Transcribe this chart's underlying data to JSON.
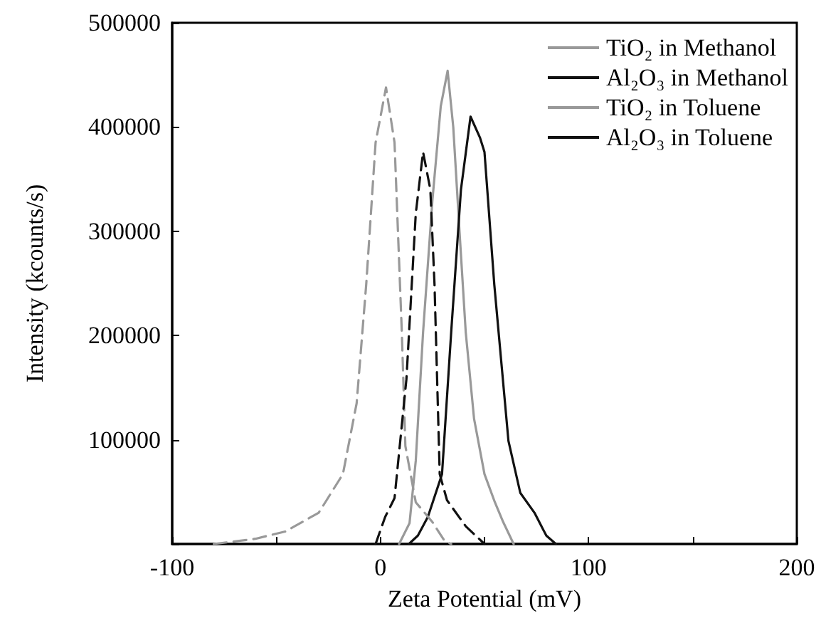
{
  "chart_data": {
    "type": "line",
    "xlabel": "Zeta Potential (mV)",
    "ylabel": "Intensity (kcounts/s)",
    "xlim": [
      -100,
      200
    ],
    "xticks": [
      -100,
      {
        "value": -50,
        "label": null
      },
      0,
      {
        "value": 50,
        "label": null
      },
      100,
      {
        "value": 150,
        "label": null
      },
      200
    ],
    "ylim": [
      0,
      500000
    ],
    "yticks": [
      {
        "value": 0,
        "label": null
      },
      100000,
      200000,
      300000,
      400000,
      500000
    ],
    "grid": false,
    "legend": "top right",
    "marker": "none",
    "series": [
      {
        "name": "TiO₂ in Methanol",
        "color": "#999999",
        "line_style": "solid",
        "x": [
          9,
          14,
          17,
          20.5,
          25,
          29,
          32.3,
          35,
          38,
          41,
          45,
          50,
          55,
          59,
          64
        ],
        "values": [
          0,
          20000,
          80000,
          203000,
          330000,
          420000,
          454000,
          400000,
          300000,
          203000,
          120000,
          67000,
          40000,
          21000,
          0
        ]
      },
      {
        "name": "Al₂O₃ in Methanol",
        "color": "#111111",
        "line_style": "solid",
        "x": [
          13.7,
          18,
          22.8,
          29.6,
          34,
          38.7,
          43.3,
          47.8,
          50,
          54.7,
          61.5,
          67.2,
          74,
          79.7,
          84.3
        ],
        "values": [
          0,
          8000,
          26000,
          67000,
          203000,
          340000,
          410000,
          390000,
          376000,
          249000,
          99000,
          49000,
          30000,
          8000,
          0
        ]
      },
      {
        "name": "TiO₂ in Toluene",
        "color": "#999999",
        "line_style": "dashed",
        "x": [
          -80,
          -60,
          -45.6,
          -29.6,
          -18,
          -11.4,
          -6.8,
          -2.3,
          2.7,
          6.8,
          10.3,
          12,
          17,
          25,
          30.8,
          34
        ],
        "values": [
          0,
          5000,
          12000,
          30000,
          67000,
          135000,
          249000,
          385000,
          438000,
          385000,
          203000,
          94000,
          40000,
          21000,
          3000,
          0
        ]
      },
      {
        "name": "Al₂O₃ in Toluene",
        "color": "#111111",
        "line_style": "dashed",
        "x": [
          -2.3,
          2.3,
          6.8,
          12.5,
          17,
          20.5,
          24,
          26,
          28.5,
          32,
          41,
          50
        ],
        "values": [
          0,
          26000,
          44000,
          158000,
          317000,
          376000,
          340000,
          249000,
          67000,
          42000,
          17000,
          0
        ]
      }
    ]
  }
}
